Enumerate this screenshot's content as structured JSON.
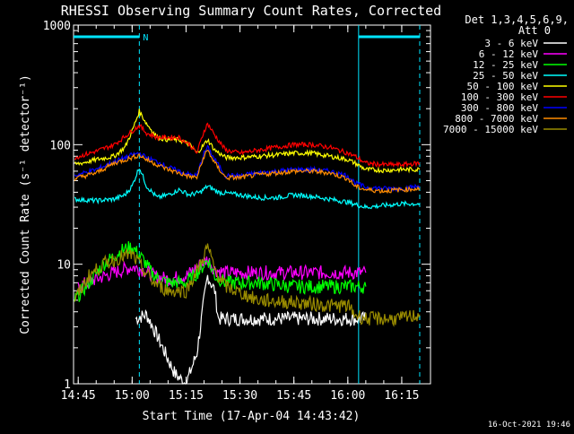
{
  "chart_data": {
    "type": "line",
    "title": "RHESSI Observing Summary Count Rates, Corrected",
    "xlabel": "Start Time (17-Apr-04 14:43:42)",
    "ylabel": "Corrected Count Rate (s⁻¹ detector⁻¹)",
    "y_scale": "log",
    "ylim": [
      1,
      1000
    ],
    "xlim": [
      "14:43:42",
      "16:23:00"
    ],
    "x_ticks": [
      "14:45",
      "15:00",
      "15:15",
      "15:30",
      "15:45",
      "16:00",
      "16:15"
    ],
    "y_ticks": [
      "1",
      "10",
      "100",
      "1000"
    ],
    "legend_header": [
      "Det 1,3,4,5,6,9,",
      "Att 0"
    ],
    "legend_placement": "right",
    "timestamp": "16-Oct-2021 19:46",
    "night_label": "N",
    "series": [
      {
        "name": "3 - 6 keV",
        "color": "#ffffff",
        "points": [
          [
            "15:01",
            3.5
          ],
          [
            "15:04",
            3.8
          ],
          [
            "15:07",
            2.5
          ],
          [
            "15:10",
            1.6
          ],
          [
            "15:12",
            1.2
          ],
          [
            "15:15",
            1.0
          ],
          [
            "15:18",
            1.8
          ],
          [
            "15:20",
            5.0
          ],
          [
            "15:21",
            8.0
          ],
          [
            "15:23",
            6.0
          ],
          [
            "15:24",
            3.5
          ],
          [
            "15:26",
            3.5
          ],
          [
            "15:30",
            3.5
          ],
          [
            "15:40",
            3.5
          ],
          [
            "15:50",
            3.5
          ],
          [
            "16:00",
            3.5
          ],
          [
            "16:05",
            3.5
          ]
        ]
      },
      {
        "name": "6 - 12 keV",
        "color": "#ff00ff",
        "points": [
          [
            "14:45",
            6.5
          ],
          [
            "14:50",
            7.5
          ],
          [
            "14:55",
            8.5
          ],
          [
            "15:00",
            9.5
          ],
          [
            "15:03",
            9.0
          ],
          [
            "15:06",
            8.0
          ],
          [
            "15:10",
            7.5
          ],
          [
            "15:15",
            8.0
          ],
          [
            "15:19",
            10.0
          ],
          [
            "15:21",
            11.0
          ],
          [
            "15:23",
            9.0
          ],
          [
            "15:26",
            8.5
          ],
          [
            "15:30",
            8.5
          ],
          [
            "15:40",
            8.5
          ],
          [
            "15:50",
            8.5
          ],
          [
            "16:00",
            8.5
          ],
          [
            "16:05",
            8.5
          ]
        ]
      },
      {
        "name": "12 - 25 keV",
        "color": "#00ff00",
        "points": [
          [
            "14:44",
            5.0
          ],
          [
            "14:48",
            7.0
          ],
          [
            "14:52",
            10.0
          ],
          [
            "14:57",
            13.0
          ],
          [
            "15:00",
            14.0
          ],
          [
            "15:03",
            11.0
          ],
          [
            "15:06",
            8.0
          ],
          [
            "15:10",
            7.0
          ],
          [
            "15:15",
            7.0
          ],
          [
            "15:19",
            9.0
          ],
          [
            "15:21",
            11.0
          ],
          [
            "15:23",
            8.0
          ],
          [
            "15:26",
            7.0
          ],
          [
            "15:35",
            7.0
          ],
          [
            "15:45",
            6.5
          ],
          [
            "15:55",
            6.5
          ],
          [
            "16:00",
            6.5
          ],
          [
            "16:05",
            6.5
          ]
        ]
      },
      {
        "name": "25 - 50 keV",
        "color": "#00ffff",
        "points": [
          [
            "14:44",
            35
          ],
          [
            "14:50",
            34
          ],
          [
            "14:55",
            35
          ],
          [
            "14:58",
            38
          ],
          [
            "15:00",
            45
          ],
          [
            "15:02",
            65
          ],
          [
            "15:04",
            45
          ],
          [
            "15:07",
            36
          ],
          [
            "15:10",
            38
          ],
          [
            "15:13",
            42
          ],
          [
            "15:16",
            38
          ],
          [
            "15:19",
            40
          ],
          [
            "15:21",
            45
          ],
          [
            "15:24",
            40
          ],
          [
            "15:30",
            38
          ],
          [
            "15:35",
            36
          ],
          [
            "15:40",
            36
          ],
          [
            "15:45",
            38
          ],
          [
            "15:50",
            37
          ],
          [
            "15:55",
            35
          ],
          [
            "16:00",
            33
          ],
          [
            "16:05",
            30
          ],
          [
            "16:10",
            31
          ],
          [
            "16:15",
            32
          ],
          [
            "16:20",
            32
          ]
        ]
      },
      {
        "name": "50 - 100 keV",
        "color": "#ffff00",
        "points": [
          [
            "14:44",
            68
          ],
          [
            "14:50",
            75
          ],
          [
            "14:55",
            80
          ],
          [
            "14:58",
            95
          ],
          [
            "15:00",
            130
          ],
          [
            "15:02",
            190
          ],
          [
            "15:04",
            150
          ],
          [
            "15:07",
            115
          ],
          [
            "15:10",
            110
          ],
          [
            "15:13",
            110
          ],
          [
            "15:16",
            100
          ],
          [
            "15:18",
            85
          ],
          [
            "15:20",
            100
          ],
          [
            "15:21",
            110
          ],
          [
            "15:23",
            90
          ],
          [
            "15:26",
            78
          ],
          [
            "15:30",
            78
          ],
          [
            "15:35",
            80
          ],
          [
            "15:40",
            82
          ],
          [
            "15:45",
            85
          ],
          [
            "15:50",
            85
          ],
          [
            "15:55",
            80
          ],
          [
            "16:00",
            75
          ],
          [
            "16:02",
            70
          ],
          [
            "16:05",
            62
          ],
          [
            "16:10",
            61
          ],
          [
            "16:15",
            62
          ],
          [
            "16:20",
            62
          ]
        ]
      },
      {
        "name": "100 - 300 keV",
        "color": "#ff0000",
        "points": [
          [
            "14:44",
            78
          ],
          [
            "14:50",
            88
          ],
          [
            "14:55",
            100
          ],
          [
            "15:00",
            130
          ],
          [
            "15:02",
            145
          ],
          [
            "15:04",
            125
          ],
          [
            "15:07",
            115
          ],
          [
            "15:10",
            115
          ],
          [
            "15:13",
            115
          ],
          [
            "15:16",
            100
          ],
          [
            "15:18",
            85
          ],
          [
            "15:20",
            130
          ],
          [
            "15:21",
            150
          ],
          [
            "15:23",
            120
          ],
          [
            "15:26",
            90
          ],
          [
            "15:30",
            85
          ],
          [
            "15:35",
            90
          ],
          [
            "15:40",
            95
          ],
          [
            "15:45",
            100
          ],
          [
            "15:50",
            100
          ],
          [
            "15:55",
            95
          ],
          [
            "16:00",
            85
          ],
          [
            "16:02",
            80
          ],
          [
            "16:05",
            70
          ],
          [
            "16:10",
            68
          ],
          [
            "16:15",
            68
          ],
          [
            "16:20",
            70
          ]
        ]
      },
      {
        "name": "300 - 800 keV",
        "color": "#0000ff",
        "points": [
          [
            "14:44",
            55
          ],
          [
            "14:50",
            62
          ],
          [
            "14:55",
            72
          ],
          [
            "15:00",
            82
          ],
          [
            "15:02",
            85
          ],
          [
            "15:04",
            78
          ],
          [
            "15:07",
            72
          ],
          [
            "15:10",
            65
          ],
          [
            "15:13",
            60
          ],
          [
            "15:16",
            56
          ],
          [
            "15:18",
            55
          ],
          [
            "15:20",
            85
          ],
          [
            "15:21",
            95
          ],
          [
            "15:23",
            75
          ],
          [
            "15:26",
            55
          ],
          [
            "15:30",
            55
          ],
          [
            "15:35",
            58
          ],
          [
            "15:40",
            60
          ],
          [
            "15:45",
            62
          ],
          [
            "15:50",
            62
          ],
          [
            "15:55",
            60
          ],
          [
            "16:00",
            55
          ],
          [
            "16:02",
            48
          ],
          [
            "16:05",
            44
          ],
          [
            "16:10",
            43
          ],
          [
            "16:15",
            43
          ],
          [
            "16:20",
            45
          ]
        ]
      },
      {
        "name": "800 - 7000 keV",
        "color": "#ff8c00",
        "points": [
          [
            "14:44",
            52
          ],
          [
            "14:50",
            58
          ],
          [
            "14:55",
            70
          ],
          [
            "15:00",
            78
          ],
          [
            "15:02",
            82
          ],
          [
            "15:04",
            75
          ],
          [
            "15:07",
            68
          ],
          [
            "15:10",
            62
          ],
          [
            "15:13",
            58
          ],
          [
            "15:16",
            54
          ],
          [
            "15:18",
            53
          ],
          [
            "15:20",
            80
          ],
          [
            "15:21",
            90
          ],
          [
            "15:23",
            70
          ],
          [
            "15:26",
            53
          ],
          [
            "15:30",
            53
          ],
          [
            "15:35",
            56
          ],
          [
            "15:40",
            58
          ],
          [
            "15:45",
            60
          ],
          [
            "15:50",
            60
          ],
          [
            "15:55",
            58
          ],
          [
            "16:00",
            52
          ],
          [
            "16:02",
            45
          ],
          [
            "16:05",
            42
          ],
          [
            "16:10",
            41
          ],
          [
            "16:15",
            42
          ],
          [
            "16:20",
            43
          ]
        ]
      },
      {
        "name": "7000 - 15000 keV",
        "color": "#9a8c00",
        "points": [
          [
            "14:44",
            5.0
          ],
          [
            "14:48",
            8.0
          ],
          [
            "14:52",
            10.0
          ],
          [
            "14:57",
            11.5
          ],
          [
            "15:00",
            12.0
          ],
          [
            "15:03",
            9.0
          ],
          [
            "15:06",
            7.0
          ],
          [
            "15:10",
            6.0
          ],
          [
            "15:15",
            6.0
          ],
          [
            "15:19",
            10.0
          ],
          [
            "15:21",
            14.0
          ],
          [
            "15:23",
            9.0
          ],
          [
            "15:26",
            6.5
          ],
          [
            "15:35",
            5.0
          ],
          [
            "15:45",
            4.8
          ],
          [
            "15:55",
            4.5
          ],
          [
            "16:00",
            4.5
          ],
          [
            "16:02",
            3.8
          ],
          [
            "16:05",
            3.5
          ],
          [
            "16:10",
            3.5
          ],
          [
            "16:15",
            3.5
          ],
          [
            "16:20",
            3.8
          ]
        ]
      }
    ]
  }
}
